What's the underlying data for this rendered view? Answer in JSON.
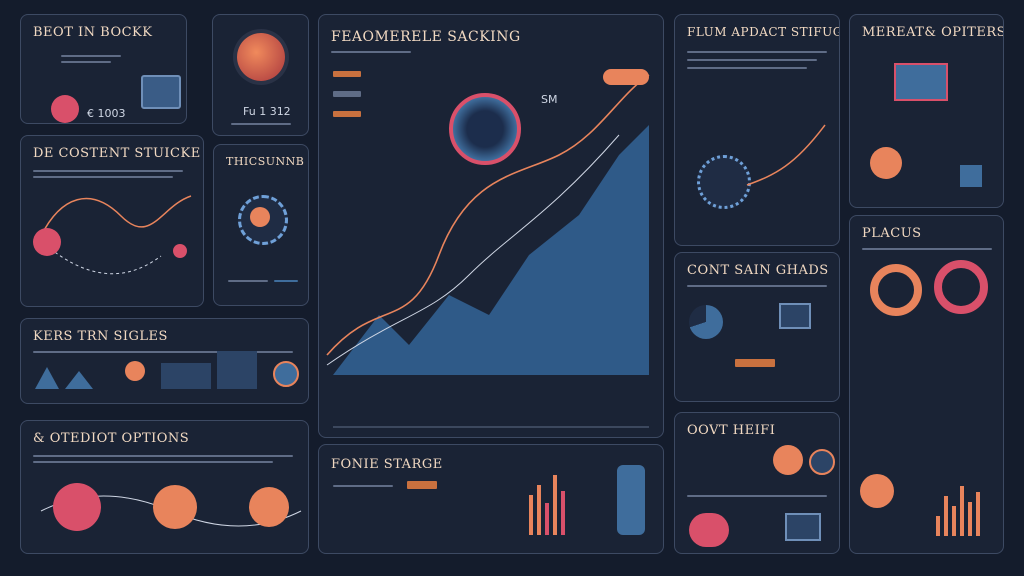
{
  "panels": {
    "p1": {
      "title": "BEOT IN BOCKK",
      "value": "€ 1003"
    },
    "p2": {
      "value": "Fu 1 312"
    },
    "p3": {
      "title": "DE COSTENT STUICKE"
    },
    "p4": {
      "title": "THICSUNNB"
    },
    "p5": {
      "title": "KERS TRN SIGLES"
    },
    "p6": {
      "title": "& OTEDIOT OPTIONS"
    },
    "p7": {
      "title": "FEAOMERELE SACKING",
      "readout": "SM"
    },
    "p8": {
      "title": "FONIE STARGE"
    },
    "p9": {
      "title": "FLUM APDACT STIFUGES"
    },
    "p10": {
      "title": "CONT SAIN GHADS"
    },
    "p11": {
      "title": "OOVT HEIFI"
    },
    "p12": {
      "title": "MEREAT& OPITERS"
    },
    "p13": {
      "title": "PLACUS"
    }
  },
  "colors": {
    "bg": "#141c2c",
    "panel": "#1a2335",
    "border": "#3d4a63",
    "accent": "#e8845c",
    "pink": "#d9506a",
    "blue": "#3f6d9c"
  }
}
